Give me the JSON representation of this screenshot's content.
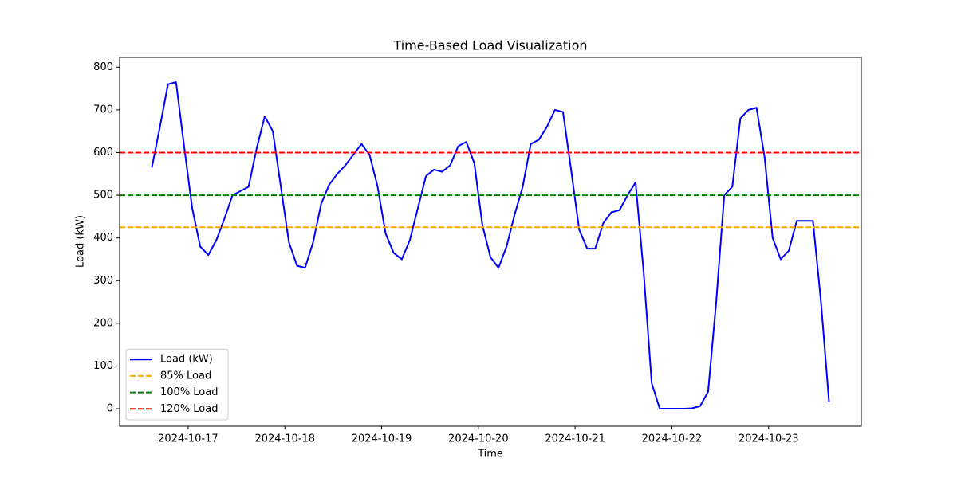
{
  "chart_data": {
    "type": "line",
    "title": "Time-Based Load Visualization",
    "xlabel": "Time",
    "ylabel": "Load (kW)",
    "x": [
      "2024-10-16 15:00",
      "2024-10-16 17:00",
      "2024-10-16 19:00",
      "2024-10-16 21:00",
      "2024-10-16 23:00",
      "2024-10-17 01:00",
      "2024-10-17 03:00",
      "2024-10-17 05:00",
      "2024-10-17 07:00",
      "2024-10-17 09:00",
      "2024-10-17 11:00",
      "2024-10-17 13:00",
      "2024-10-17 15:00",
      "2024-10-17 17:00",
      "2024-10-17 19:00",
      "2024-10-17 21:00",
      "2024-10-17 23:00",
      "2024-10-18 01:00",
      "2024-10-18 03:00",
      "2024-10-18 05:00",
      "2024-10-18 07:00",
      "2024-10-18 09:00",
      "2024-10-18 11:00",
      "2024-10-18 13:00",
      "2024-10-18 15:00",
      "2024-10-18 17:00",
      "2024-10-18 19:00",
      "2024-10-18 21:00",
      "2024-10-18 23:00",
      "2024-10-19 01:00",
      "2024-10-19 03:00",
      "2024-10-19 05:00",
      "2024-10-19 07:00",
      "2024-10-19 09:00",
      "2024-10-19 11:00",
      "2024-10-19 13:00",
      "2024-10-19 15:00",
      "2024-10-19 17:00",
      "2024-10-19 19:00",
      "2024-10-19 21:00",
      "2024-10-19 23:00",
      "2024-10-20 01:00",
      "2024-10-20 03:00",
      "2024-10-20 05:00",
      "2024-10-20 07:00",
      "2024-10-20 09:00",
      "2024-10-20 11:00",
      "2024-10-20 13:00",
      "2024-10-20 15:00",
      "2024-10-20 17:00",
      "2024-10-20 19:00",
      "2024-10-20 21:00",
      "2024-10-20 23:00",
      "2024-10-21 01:00",
      "2024-10-21 03:00",
      "2024-10-21 05:00",
      "2024-10-21 07:00",
      "2024-10-21 09:00",
      "2024-10-21 11:00",
      "2024-10-21 13:00",
      "2024-10-21 15:00",
      "2024-10-21 17:00",
      "2024-10-21 19:00",
      "2024-10-21 21:00",
      "2024-10-21 23:00",
      "2024-10-22 01:00",
      "2024-10-22 03:00",
      "2024-10-22 05:00",
      "2024-10-22 07:00",
      "2024-10-22 09:00",
      "2024-10-22 11:00",
      "2024-10-22 13:00",
      "2024-10-22 15:00",
      "2024-10-22 17:00",
      "2024-10-22 19:00",
      "2024-10-22 21:00",
      "2024-10-22 23:00",
      "2024-10-23 01:00",
      "2024-10-23 03:00",
      "2024-10-23 05:00",
      "2024-10-23 07:00",
      "2024-10-23 09:00",
      "2024-10-23 11:00",
      "2024-10-23 13:00",
      "2024-10-23 15:00"
    ],
    "series": [
      {
        "name": "Load (kW)",
        "color": "#0000ff",
        "values": [
          565,
          660,
          760,
          765,
          615,
          470,
          380,
          360,
          395,
          445,
          500,
          510,
          520,
          610,
          685,
          650,
          520,
          390,
          335,
          330,
          390,
          480,
          525,
          550,
          570,
          595,
          620,
          595,
          520,
          410,
          365,
          350,
          395,
          470,
          545,
          560,
          555,
          570,
          615,
          625,
          575,
          430,
          355,
          330,
          380,
          455,
          520,
          620,
          630,
          660,
          700,
          695,
          560,
          420,
          375,
          375,
          435,
          460,
          465,
          500,
          530,
          320,
          60,
          0,
          0,
          0,
          0,
          1,
          6,
          40,
          250,
          500,
          520,
          680,
          700,
          705,
          590,
          400,
          350,
          370,
          440,
          440,
          440,
          250,
          15
        ]
      }
    ],
    "thresholds": [
      {
        "name": "85% Load",
        "value": 425,
        "color": "orange"
      },
      {
        "name": "100% Load",
        "value": 500,
        "color": "green"
      },
      {
        "name": "120% Load",
        "value": 600,
        "color": "red"
      }
    ],
    "xlim": [
      "2024-10-16 07:00",
      "2024-10-23 23:00"
    ],
    "xticks": [
      "2024-10-17",
      "2024-10-18",
      "2024-10-19",
      "2024-10-20",
      "2024-10-21",
      "2024-10-22",
      "2024-10-23"
    ],
    "ylim": [
      -41,
      823
    ],
    "yticks": [
      0,
      100,
      200,
      300,
      400,
      500,
      600,
      700,
      800
    ],
    "legend": "lower left"
  }
}
